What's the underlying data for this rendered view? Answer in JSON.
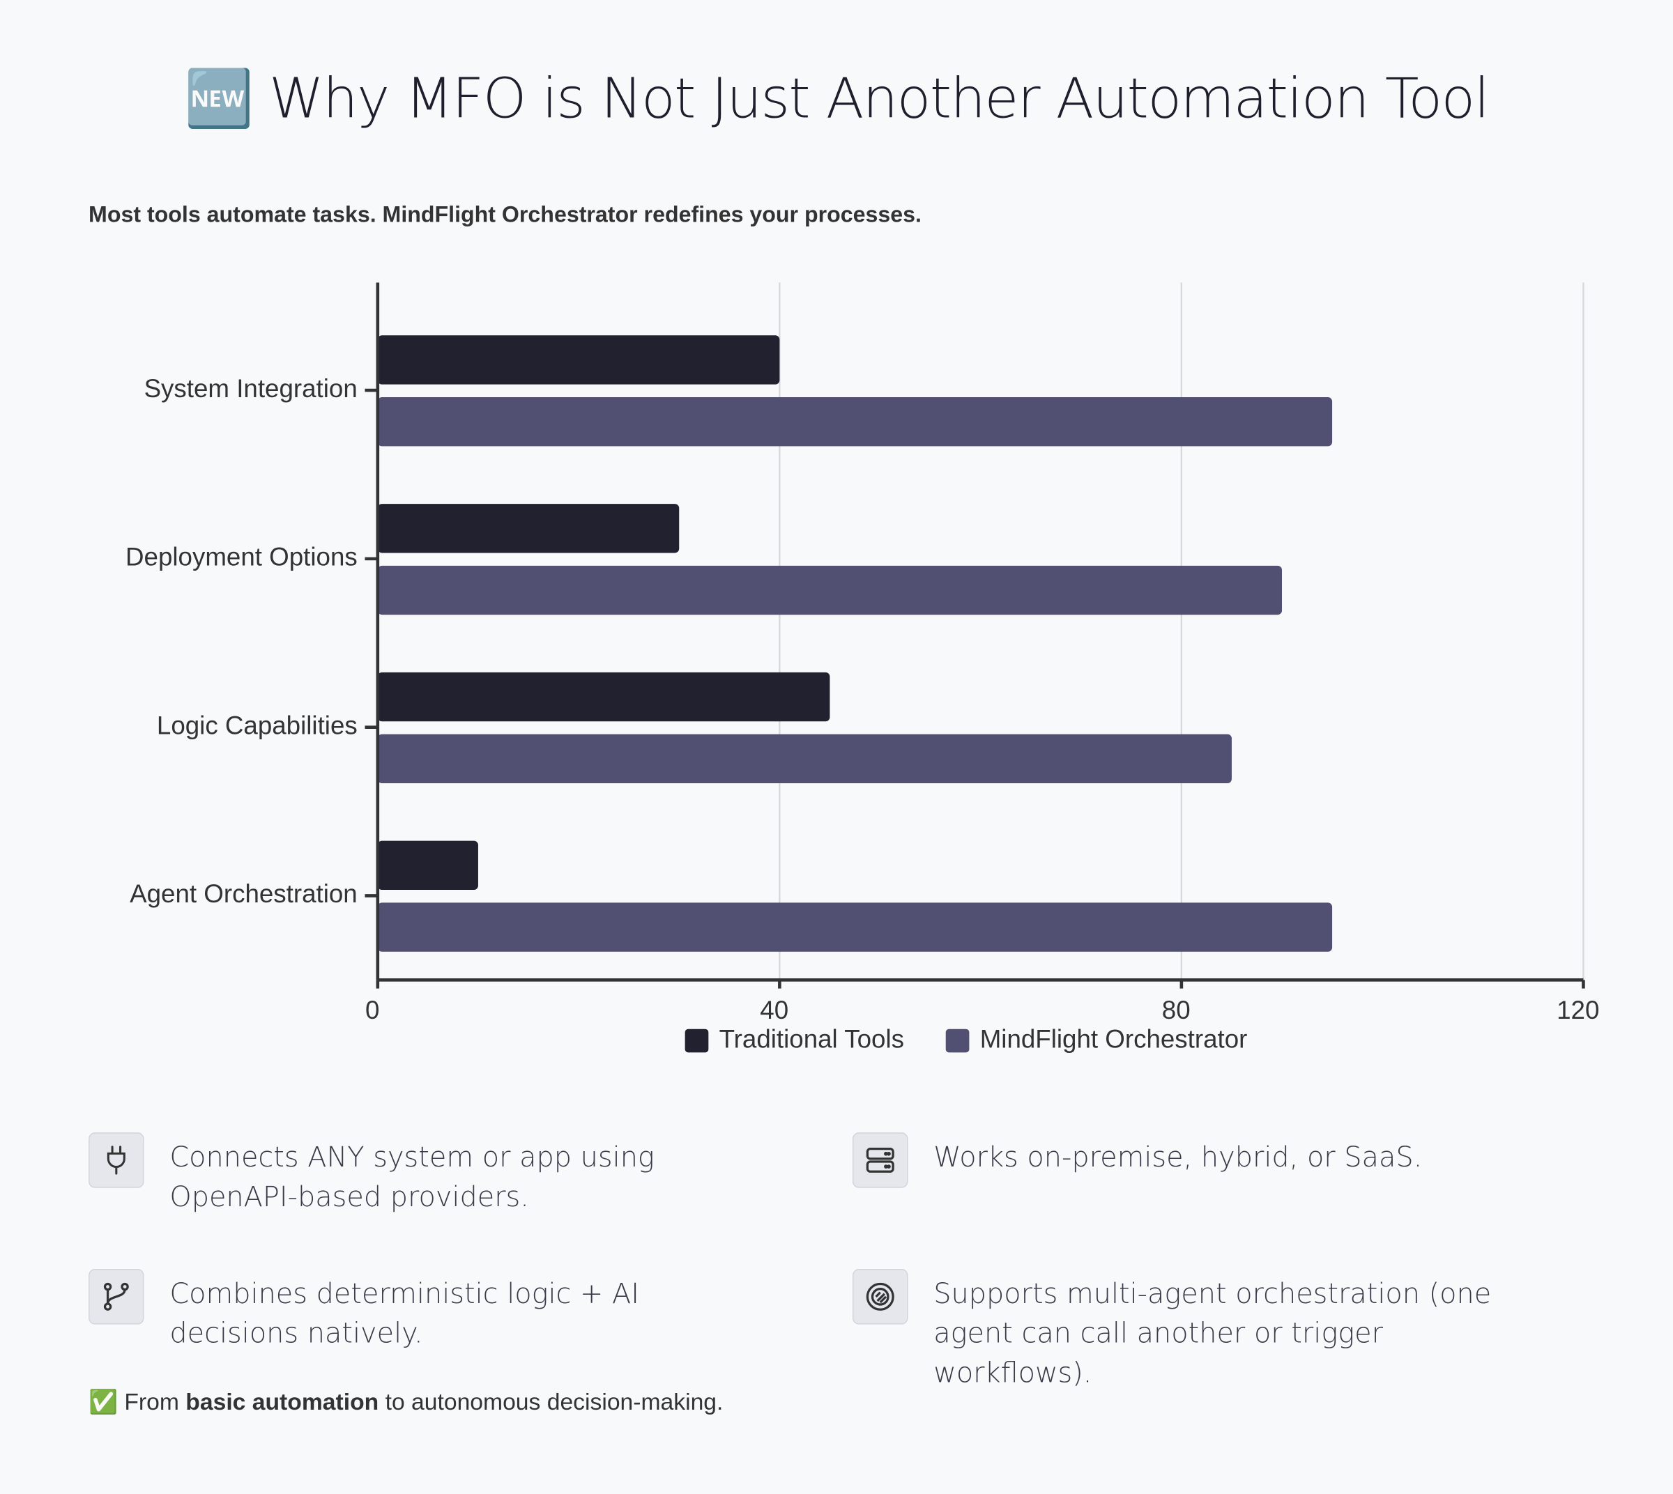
{
  "header": {
    "title": "🆕 Why MFO is Not Just Another Automation Tool",
    "subtitle": "Most tools automate tasks. MindFlight Orchestrator redefines your processes."
  },
  "chart_data": {
    "type": "hbar",
    "categories": [
      "System Integration",
      "Deployment Options",
      "Logic Capabilities",
      "Agent Orchestration"
    ],
    "series": [
      {
        "name": "Traditional Tools",
        "color": "#22212f",
        "values": [
          40,
          30,
          45,
          10
        ]
      },
      {
        "name": "MindFlight Orchestrator",
        "color": "#514f72",
        "values": [
          95,
          90,
          85,
          95
        ]
      }
    ],
    "xlim": [
      0,
      120
    ],
    "xticks": [
      0,
      40,
      80,
      120
    ],
    "grid": true,
    "legend": "bottom"
  },
  "features": [
    {
      "text": "Connects ANY system or app using OpenAPI-based providers."
    },
    {
      "text": "Works on-premise, hybrid, or SaaS."
    },
    {
      "text": "Combines deterministic logic + AI decisions natively."
    },
    {
      "text": "Supports multi-agent orchestration (one agent can call another or trigger workflows)."
    }
  ],
  "footer": {
    "icon": "✅",
    "prefix": "From",
    "bold": "basic automation",
    "suffix": "to autonomous decision-making."
  }
}
